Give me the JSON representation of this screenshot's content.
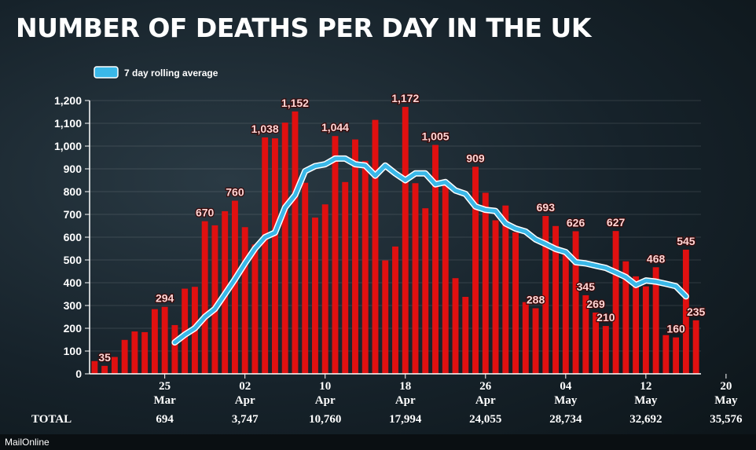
{
  "title": "NUMBER OF DEATHS PER DAY IN THE UK",
  "legend_label": "7 day rolling average",
  "total_label": "TOTAL",
  "source": "MailOnline",
  "colors": {
    "bar": "#e01010",
    "line": "#3ab8e8",
    "background": "#16222a"
  },
  "chart_data": {
    "type": "bar",
    "ylim": [
      0,
      1200
    ],
    "yticks": [
      0,
      100,
      200,
      300,
      400,
      500,
      600,
      700,
      800,
      900,
      1000,
      1100,
      1200
    ],
    "ytick_labels": [
      "0",
      "100",
      "200",
      "300",
      "400",
      "500",
      "600",
      "700",
      "800",
      "900",
      "1,000",
      "1,100",
      "1,200"
    ],
    "x_labels": [
      {
        "index": 7,
        "day": "25",
        "month": "Mar",
        "total": "694"
      },
      {
        "index": 15,
        "day": "02",
        "month": "Apr",
        "total": "3,747"
      },
      {
        "index": 23,
        "day": "10",
        "month": "Apr",
        "total": "10,760"
      },
      {
        "index": 31,
        "day": "18",
        "month": "Apr",
        "total": "17,994"
      },
      {
        "index": 39,
        "day": "26",
        "month": "Apr",
        "total": "24,055"
      },
      {
        "index": 47,
        "day": "04",
        "month": "May",
        "total": "28,734"
      },
      {
        "index": 55,
        "day": "12",
        "month": "May",
        "total": "32,692"
      },
      {
        "index": 63,
        "day": "20",
        "month": "May",
        "total": "35,576"
      }
    ],
    "values": [
      56,
      35,
      74,
      149,
      186,
      183,
      284,
      294,
      214,
      374,
      382,
      670,
      652,
      714,
      760,
      644,
      568,
      1038,
      1034,
      1103,
      1152,
      839,
      686,
      744,
      1044,
      842,
      1029,
      935,
      1115,
      498,
      559,
      1172,
      837,
      727,
      1005,
      843,
      420,
      338,
      909,
      795,
      674,
      739,
      621,
      315,
      288,
      693,
      649,
      539,
      626,
      345,
      269,
      210,
      627,
      494,
      428,
      384,
      468,
      170,
      160,
      545,
      235
    ],
    "rolling_start_index": 8,
    "rolling_average": [
      138,
      172,
      200,
      250,
      285,
      350,
      415,
      485,
      550,
      600,
      620,
      730,
      785,
      890,
      912,
      920,
      945,
      945,
      920,
      915,
      870,
      915,
      880,
      850,
      880,
      880,
      832,
      842,
      805,
      790,
      735,
      720,
      715,
      660,
      638,
      625,
      590,
      570,
      548,
      535,
      490,
      485,
      475,
      465,
      445,
      425,
      390,
      410,
      405,
      395,
      385,
      340
    ],
    "data_labels": [
      {
        "index": 1,
        "text": "35"
      },
      {
        "index": 7,
        "text": "294"
      },
      {
        "index": 11,
        "text": "670"
      },
      {
        "index": 14,
        "text": "760"
      },
      {
        "index": 17,
        "text": "1,038"
      },
      {
        "index": 20,
        "text": "1,152"
      },
      {
        "index": 24,
        "text": "1,044"
      },
      {
        "index": 31,
        "text": "1,172"
      },
      {
        "index": 34,
        "text": "1,005"
      },
      {
        "index": 38,
        "text": "909"
      },
      {
        "index": 44,
        "text": "288"
      },
      {
        "index": 45,
        "text": "693"
      },
      {
        "index": 48,
        "text": "626"
      },
      {
        "index": 49,
        "text": "345"
      },
      {
        "index": 50,
        "text": "269"
      },
      {
        "index": 51,
        "text": "210"
      },
      {
        "index": 52,
        "text": "627"
      },
      {
        "index": 56,
        "text": "468"
      },
      {
        "index": 58,
        "text": "160"
      },
      {
        "index": 59,
        "text": "545"
      },
      {
        "index": 60,
        "text": "235"
      }
    ]
  }
}
